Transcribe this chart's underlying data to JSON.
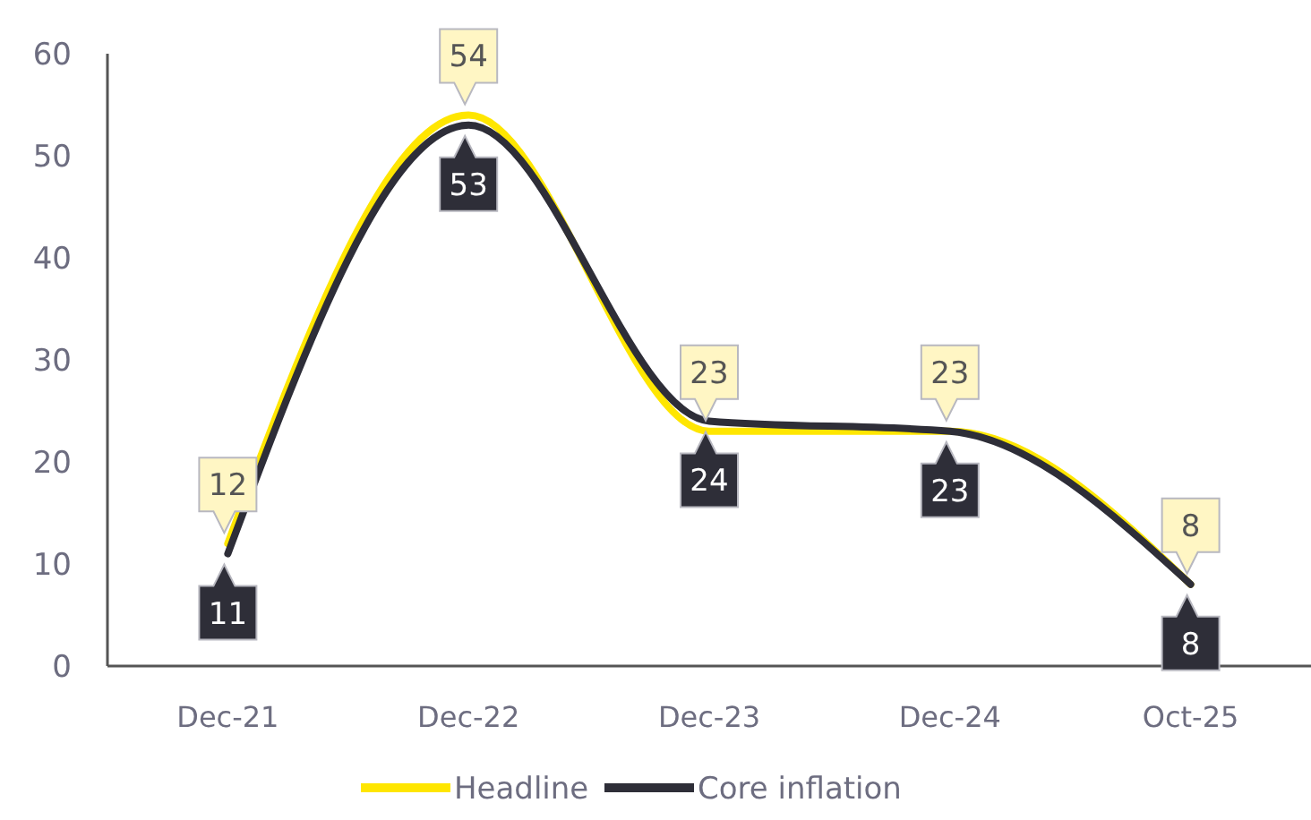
{
  "chart_data": {
    "type": "line",
    "categories": [
      "Dec-21",
      "Dec-22",
      "Dec-23",
      "Dec-24",
      "Oct-25"
    ],
    "series": [
      {
        "name": "Headline",
        "color": "#ffe600",
        "values": [
          12,
          54,
          23,
          23,
          8
        ]
      },
      {
        "name": "Core inflation",
        "color": "#2e2e38",
        "values": [
          11,
          53,
          24,
          23,
          8
        ]
      }
    ],
    "ylim": [
      0,
      60
    ],
    "yticks": [
      0,
      10,
      20,
      30,
      40,
      50,
      60
    ],
    "grid": false,
    "legend": "bottom",
    "data_labels": true,
    "marker": "none",
    "line_style": "solid"
  }
}
